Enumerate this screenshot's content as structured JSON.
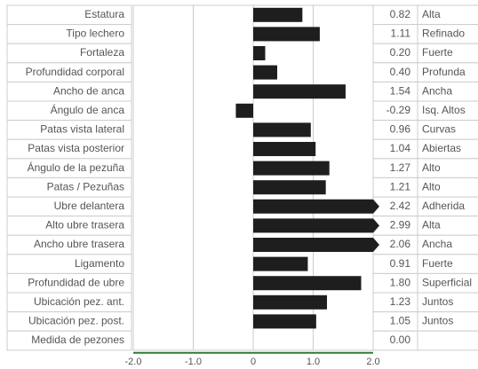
{
  "chart_data": {
    "type": "bar",
    "orientation": "horizontal",
    "categories": [
      "Estatura",
      "Tipo lechero",
      "Fortaleza",
      "Profundidad corporal",
      "Ancho de anca",
      "Ángulo de anca",
      "Patas vista lateral",
      "Patas vista posterior",
      "Ángulo de la pezuña",
      "Patas / Pezuñas",
      "Ubre delantera",
      "Alto ubre trasera",
      "Ancho ubre trasera",
      "Ligamento",
      "Profundidad de ubre",
      "Ubicación pez. ant.",
      "Ubicación pez. post.",
      "Medida de pezones"
    ],
    "values": [
      0.82,
      1.11,
      0.2,
      0.4,
      1.54,
      -0.29,
      0.96,
      1.04,
      1.27,
      1.21,
      2.42,
      2.99,
      2.06,
      0.91,
      1.8,
      1.23,
      1.05,
      0
    ],
    "value_labels": [
      "0.82",
      "1.11",
      "0.20",
      "0.40",
      "1.54",
      "-0.29",
      "0.96",
      "1.04",
      "1.27",
      "1.21",
      "2.42",
      "2.99",
      "2.06",
      "0.91",
      "1.80",
      "1.23",
      "1.05",
      "0.00"
    ],
    "descriptors": [
      "Alta",
      "Refinado",
      "Fuerte",
      "Profunda",
      "Ancha",
      "Isq. Altos",
      "Curvas",
      "Abiertas",
      "Alto",
      "Alto",
      "Adherida",
      "Alta",
      "Ancha",
      "Fuerte",
      "Superficial",
      "Juntos",
      "Juntos",
      null
    ],
    "color": "#1e1e1e",
    "xlim": [
      -2,
      2
    ],
    "xticks": [
      {
        "value": -2,
        "label": "-2.0"
      },
      {
        "value": -1,
        "label": "-1.0"
      },
      0,
      {
        "value": 1,
        "label": "1.0"
      },
      {
        "value": 2,
        "label": "2.0"
      }
    ],
    "grid": true
  }
}
